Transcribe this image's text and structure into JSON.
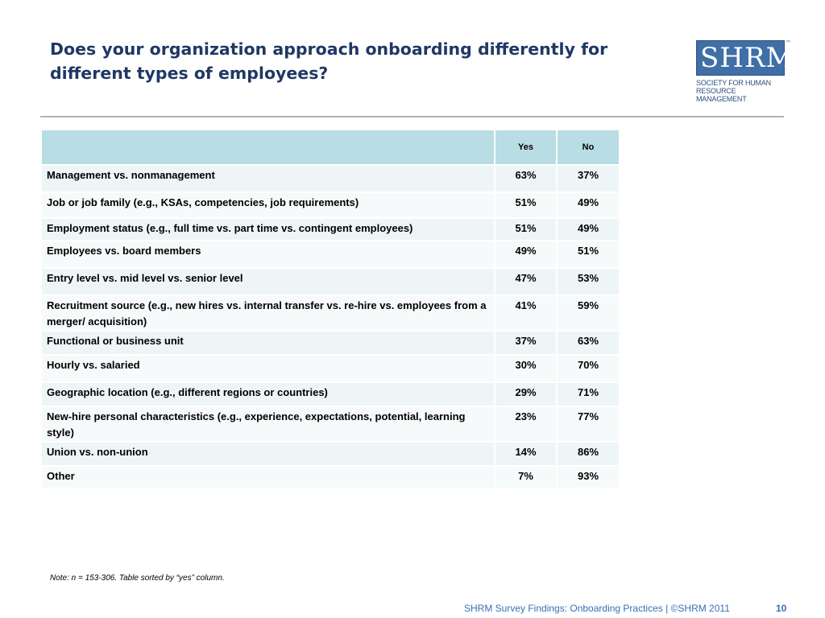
{
  "slide": {
    "title": "Does your organization approach onboarding differently for different types of employees?"
  },
  "logo": {
    "mark": "SHRM",
    "tm": "™",
    "line1": "SOCIETY FOR HUMAN",
    "line2": "RESOURCE MANAGEMENT"
  },
  "table": {
    "columns": [
      "",
      "Yes",
      "No"
    ],
    "rows": [
      {
        "label": "Management vs. nonmanagement",
        "yes": "63%",
        "no": "37%"
      },
      {
        "label": "Job or job family (e.g., KSAs, competencies, job requirements)",
        "yes": "51%",
        "no": "49%"
      },
      {
        "label": "Employment status (e.g., full time vs. part time vs. contingent employees)",
        "yes": "51%",
        "no": "49%"
      },
      {
        "label": "Employees vs. board members",
        "yes": "49%",
        "no": "51%"
      },
      {
        "label": "Entry level vs. mid level vs. senior level",
        "yes": "47%",
        "no": "53%"
      },
      {
        "label": "Recruitment source (e.g., new hires vs. internal transfer vs. re-hire vs. employees from a merger/ acquisition)",
        "yes": "41%",
        "no": "59%"
      },
      {
        "label": "Functional or business unit",
        "yes": "37%",
        "no": "63%"
      },
      {
        "label": "Hourly vs. salaried",
        "yes": "30%",
        "no": "70%"
      },
      {
        "label": "Geographic location (e.g., different regions or countries)",
        "yes": "29%",
        "no": "71%"
      },
      {
        "label": "New-hire personal characteristics (e.g., experience, expectations, potential, learning style)",
        "yes": "23%",
        "no": "77%"
      },
      {
        "label": "Union vs. non-union",
        "yes": "14%",
        "no": "86%"
      },
      {
        "label": "Other",
        "yes": "7%",
        "no": "93%"
      }
    ]
  },
  "note": "Note: n = 153-306. Table sorted by “yes” column.",
  "footer": {
    "text": "SHRM Survey Findings: Onboarding Practices | ©SHRM 2011",
    "page": "10"
  }
}
